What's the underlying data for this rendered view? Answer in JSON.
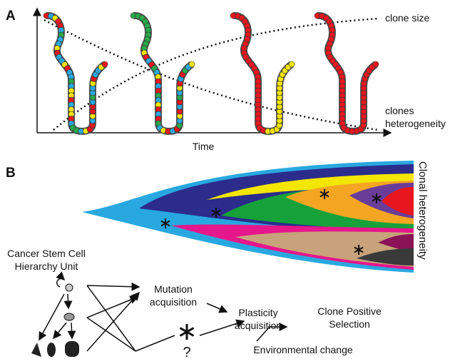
{
  "panel_a": {
    "label": "A",
    "x_axis_label": "Time",
    "curve_labels": [
      [
        "clone size"
      ],
      [
        "clones",
        "heterogeneity"
      ]
    ]
  },
  "panel_b": {
    "label": "B",
    "side_label": "Clonal heterogeneity",
    "hierarchy_label": [
      "Cancer Stem Cell",
      "Hierarchy Unit"
    ],
    "steps": [
      [
        "Mutation",
        "acquisition"
      ],
      [
        "Plasticity",
        "acquisition"
      ],
      [
        "Clone Positive",
        "Selection"
      ],
      [
        "Environmental change"
      ]
    ],
    "unknown": "?"
  }
}
